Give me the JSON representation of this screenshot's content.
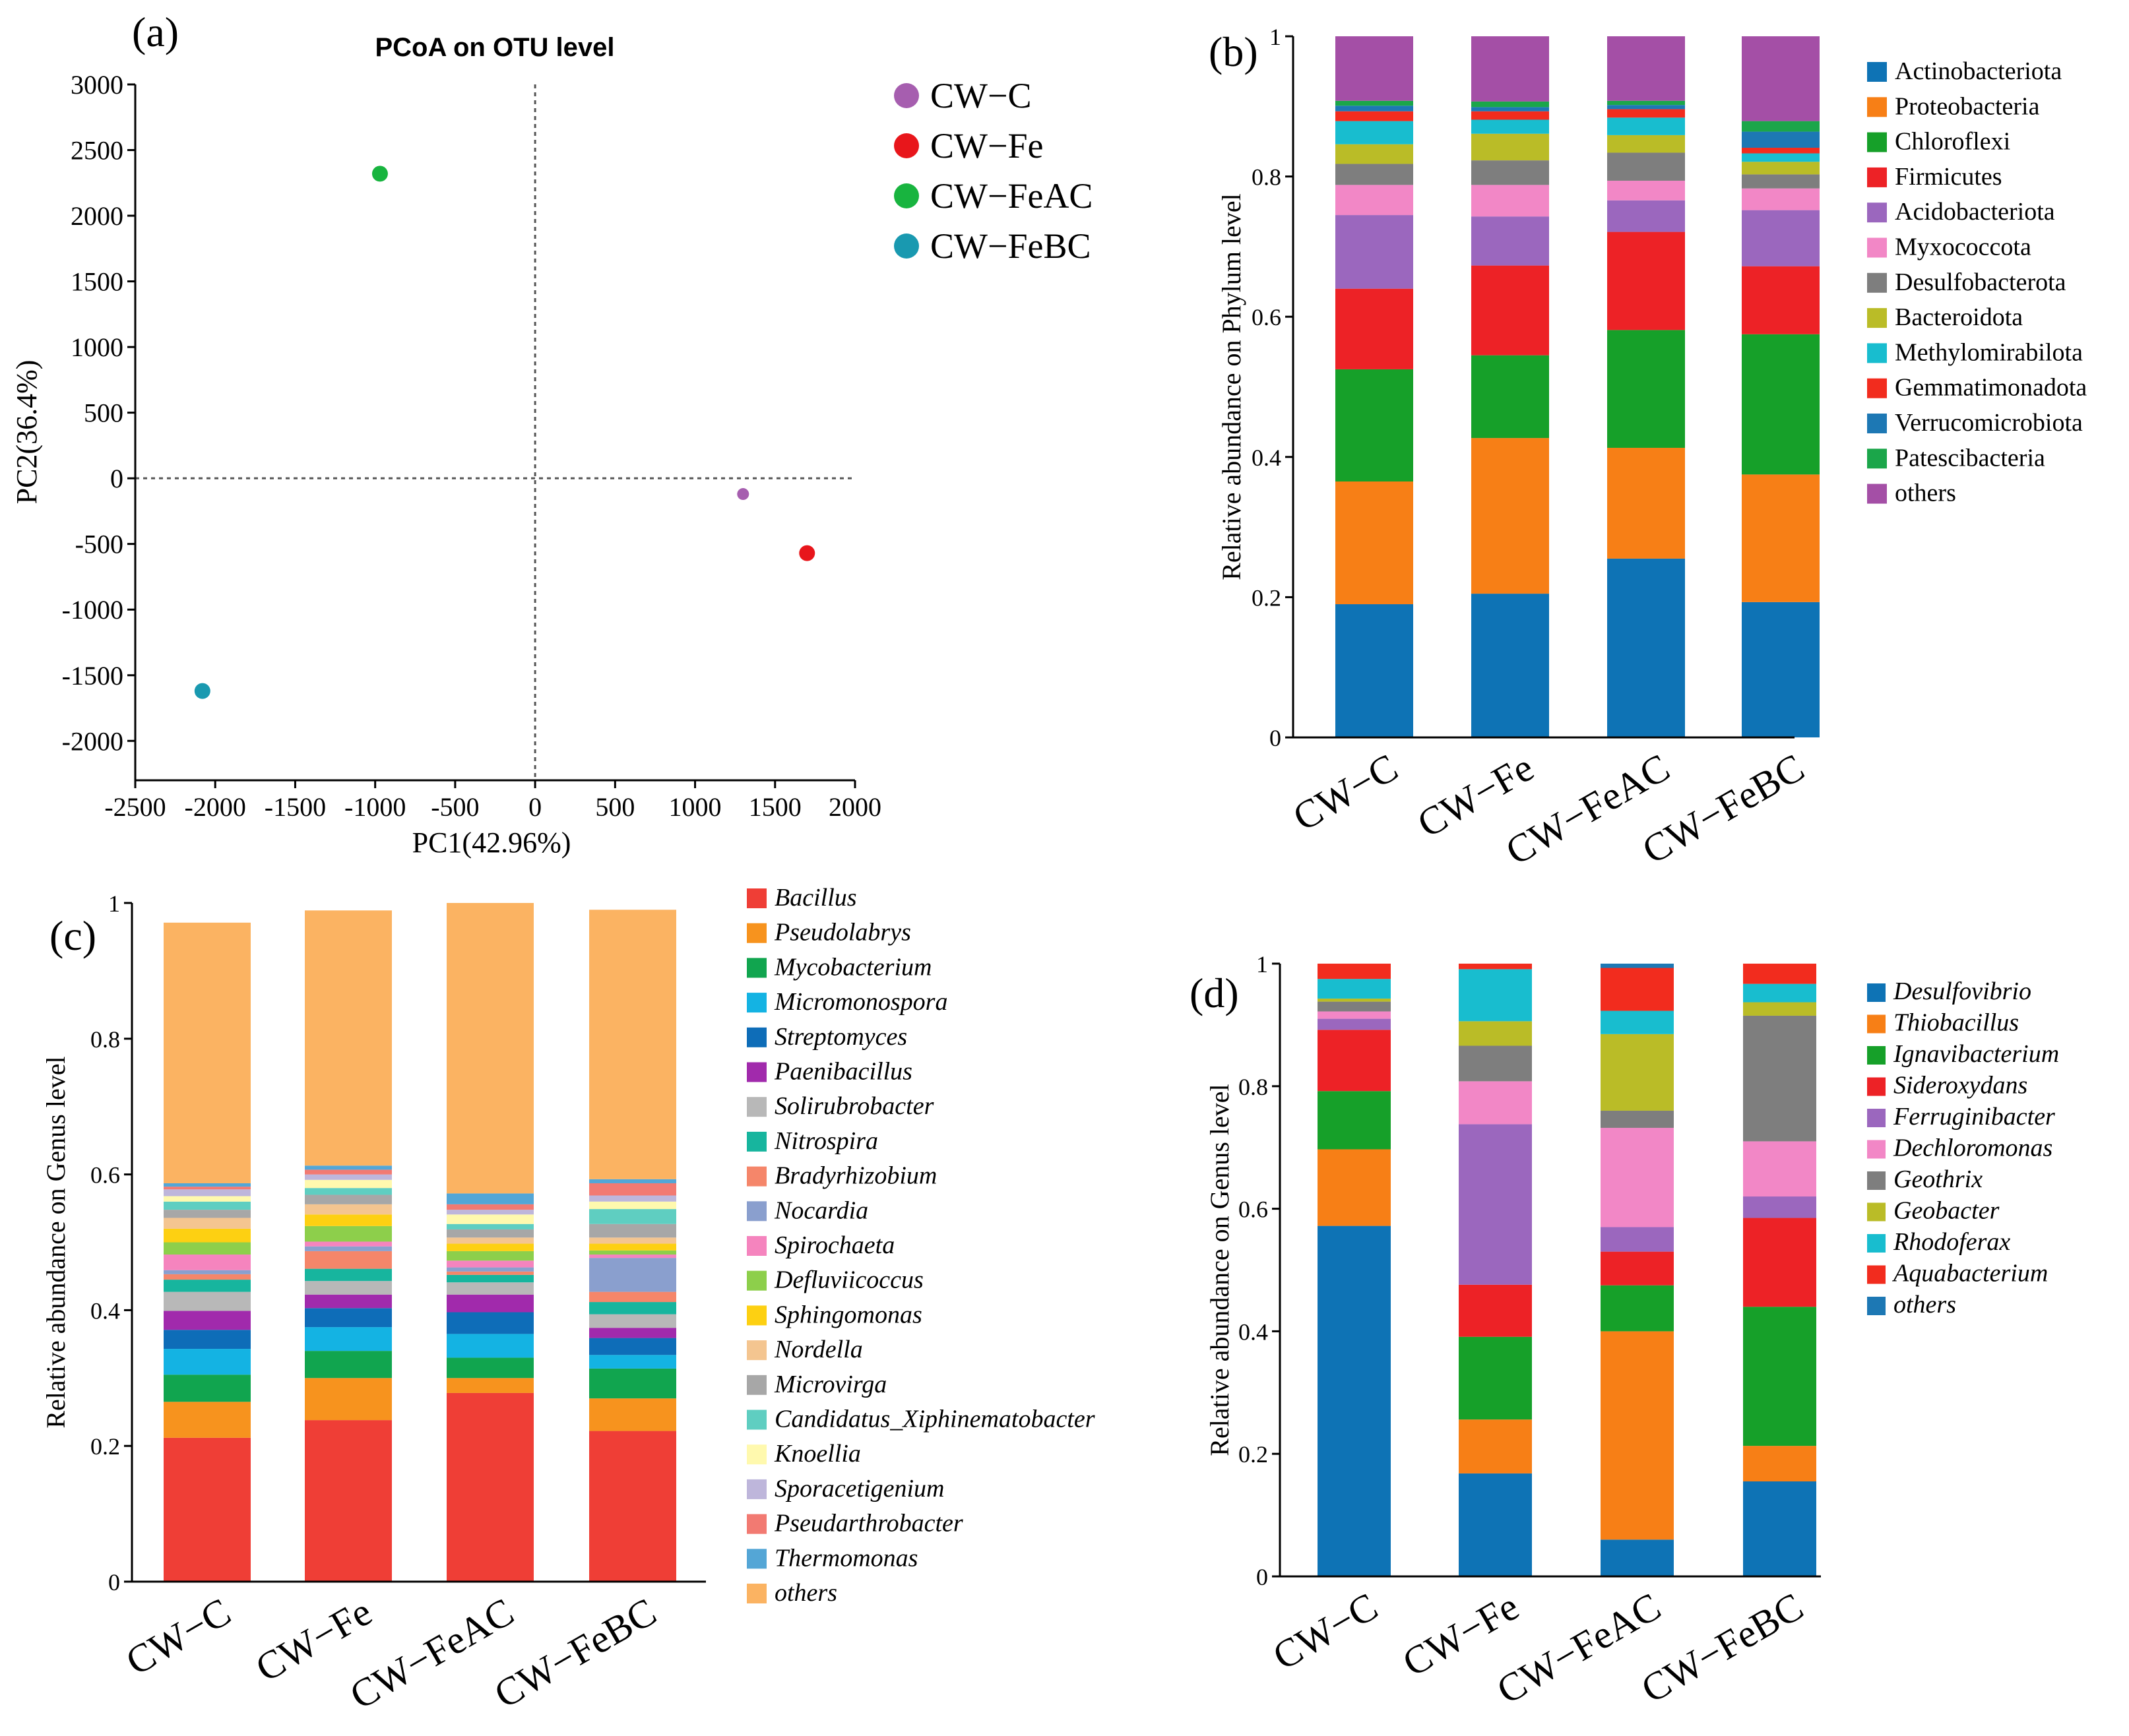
{
  "figure": {
    "panel_labels": [
      "(a)",
      "(b)",
      "(c)",
      "(d)"
    ]
  },
  "chart_data": [
    {
      "panel": "(a)",
      "type": "scatter",
      "title": "PCoA on OTU level",
      "xlabel": "PC1(42.96%)",
      "ylabel": "PC2(36.4%)",
      "xlim": [
        -2500,
        2000
      ],
      "ylim": [
        -2300,
        3000
      ],
      "xticks": [
        -2500,
        -2000,
        -1500,
        -1000,
        -500,
        0,
        500,
        1000,
        1500,
        2000
      ],
      "yticks": [
        -2000,
        -1500,
        -1000,
        -500,
        0,
        500,
        1000,
        1500,
        2000,
        2500,
        3000
      ],
      "points": [
        {
          "name": "CW−C",
          "x": 1300,
          "y": -120,
          "color": "#A65EAF"
        },
        {
          "name": "CW−Fe",
          "x": 1700,
          "y": -570,
          "color": "#E8161B"
        },
        {
          "name": "CW−FeAC",
          "x": -970,
          "y": 2320,
          "color": "#18B43F"
        },
        {
          "name": "CW−FeBC",
          "x": -2080,
          "y": -1620,
          "color": "#1999B0"
        }
      ],
      "legend": "right"
    },
    {
      "panel": "(b)",
      "type": "bar",
      "stacked": true,
      "ylabel": "Relative abundance on Phylum level",
      "ylim": [
        0,
        1
      ],
      "yticks": [
        "0",
        "0.2",
        "0.4",
        "0.6",
        "0.8",
        "1"
      ],
      "categories": [
        "CW−C",
        "CW−Fe",
        "CW−FeAC",
        "CW−FeBC"
      ],
      "series": [
        {
          "name": "Actinobacteriota",
          "color": "#0E73B5",
          "values": [
            0.19,
            0.205,
            0.255,
            0.193
          ]
        },
        {
          "name": "Proteobacteria",
          "color": "#F77F16",
          "values": [
            0.175,
            0.222,
            0.158,
            0.182
          ]
        },
        {
          "name": "Chloroflexi",
          "color": "#16A029",
          "values": [
            0.16,
            0.118,
            0.168,
            0.2
          ]
        },
        {
          "name": "Firmicutes",
          "color": "#ED2226",
          "values": [
            0.115,
            0.128,
            0.14,
            0.097
          ]
        },
        {
          "name": "Acidobacteriota",
          "color": "#9B67BE",
          "values": [
            0.105,
            0.07,
            0.045,
            0.08
          ]
        },
        {
          "name": "Myxococcota",
          "color": "#F287C6",
          "values": [
            0.043,
            0.045,
            0.028,
            0.031
          ]
        },
        {
          "name": "Desulfobacterota",
          "color": "#7E7E7E",
          "values": [
            0.03,
            0.035,
            0.04,
            0.02
          ]
        },
        {
          "name": "Bacteroidota",
          "color": "#BABC27",
          "values": [
            0.028,
            0.038,
            0.025,
            0.018
          ]
        },
        {
          "name": "Methylomirabilota",
          "color": "#18BDCF",
          "values": [
            0.033,
            0.02,
            0.025,
            0.012
          ]
        },
        {
          "name": "Gemmatimonadota",
          "color": "#F22C1E",
          "values": [
            0.014,
            0.012,
            0.012,
            0.008
          ]
        },
        {
          "name": "Verrucomicrobiota",
          "color": "#1D78B4",
          "values": [
            0.008,
            0.006,
            0.006,
            0.023
          ]
        },
        {
          "name": "Patescibacteria",
          "color": "#1BA64A",
          "values": [
            0.007,
            0.008,
            0.006,
            0.015
          ]
        },
        {
          "name": "others",
          "color": "#A44FA6",
          "values": [
            0.092,
            0.093,
            0.092,
            0.121
          ]
        }
      ]
    },
    {
      "panel": "(c)",
      "type": "bar",
      "stacked": true,
      "ylabel": "Relative abundance on Genus level",
      "ylim": [
        0,
        1
      ],
      "yticks": [
        "0",
        "0.2",
        "0.4",
        "0.6",
        "0.8",
        "1"
      ],
      "categories": [
        "CW−C",
        "CW−Fe",
        "CW−FeAC",
        "CW−FeBC"
      ],
      "series": [
        {
          "name": "Bacillus",
          "color": "#EF3E36",
          "values": [
            0.212,
            0.238,
            0.278,
            0.222
          ]
        },
        {
          "name": "Pseudolabrys",
          "color": "#F7931E",
          "values": [
            0.053,
            0.062,
            0.022,
            0.048
          ]
        },
        {
          "name": "Mycobacterium",
          "color": "#11A54F",
          "values": [
            0.04,
            0.04,
            0.03,
            0.044
          ]
        },
        {
          "name": "Micromonospora",
          "color": "#14B3E3",
          "values": [
            0.038,
            0.035,
            0.035,
            0.02
          ]
        },
        {
          "name": "Streptomyces",
          "color": "#0E6DB8",
          "values": [
            0.028,
            0.028,
            0.032,
            0.025
          ]
        },
        {
          "name": "Paenibacillus",
          "color": "#A12AAC",
          "values": [
            0.028,
            0.02,
            0.026,
            0.015
          ]
        },
        {
          "name": "Solirubrobacter",
          "color": "#B8B8B8",
          "values": [
            0.028,
            0.02,
            0.018,
            0.02
          ]
        },
        {
          "name": "Nitrospira",
          "color": "#17B59E",
          "values": [
            0.018,
            0.018,
            0.011,
            0.018
          ]
        },
        {
          "name": "Bradyrhizobium",
          "color": "#F5866A",
          "values": [
            0.008,
            0.026,
            0.005,
            0.015
          ]
        },
        {
          "name": "Nocardia",
          "color": "#8A9FCE",
          "values": [
            0.006,
            0.007,
            0.006,
            0.05
          ]
        },
        {
          "name": "Spirochaeta",
          "color": "#F584BE",
          "values": [
            0.023,
            0.007,
            0.01,
            0.005
          ]
        },
        {
          "name": "Defluviicoccus",
          "color": "#8DCF4B",
          "values": [
            0.018,
            0.023,
            0.014,
            0.006
          ]
        },
        {
          "name": "Sphingomonas",
          "color": "#FDD012",
          "values": [
            0.02,
            0.017,
            0.011,
            0.01
          ]
        },
        {
          "name": "Nordella",
          "color": "#F4C590",
          "values": [
            0.016,
            0.015,
            0.009,
            0.009
          ]
        },
        {
          "name": "Microvirga",
          "color": "#A7A7A7",
          "values": [
            0.012,
            0.014,
            0.012,
            0.02
          ]
        },
        {
          "name": "Candidatus_Xiphinematobacter",
          "color": "#5FCEC1",
          "values": [
            0.012,
            0.01,
            0.008,
            0.022
          ]
        },
        {
          "name": "Knoellia",
          "color": "#FFF9AE",
          "values": [
            0.008,
            0.012,
            0.014,
            0.011
          ]
        },
        {
          "name": "Sporacetigenium",
          "color": "#BEB6DB",
          "values": [
            0.01,
            0.008,
            0.007,
            0.009
          ]
        },
        {
          "name": "Pseudarthrobacter",
          "color": "#F27A72",
          "values": [
            0.004,
            0.007,
            0.008,
            0.018
          ]
        },
        {
          "name": "Thermomonas",
          "color": "#54A6D6",
          "values": [
            0.005,
            0.006,
            0.016,
            0.006
          ]
        },
        {
          "name": "others",
          "color": "#FBB362",
          "values": [
            0.384,
            0.376,
            0.428,
            0.397
          ]
        }
      ]
    },
    {
      "panel": "(d)",
      "type": "bar",
      "stacked": true,
      "ylabel": "Relative abundance on Genus level",
      "ylim": [
        0,
        1
      ],
      "yticks": [
        "0",
        "0.2",
        "0.4",
        "0.6",
        "0.8",
        "1"
      ],
      "categories": [
        "CW−C",
        "CW−Fe",
        "CW−FeAC",
        "CW−FeBC"
      ],
      "series": [
        {
          "name": "Desulfovibrio",
          "color": "#0E73B5",
          "values": [
            0.572,
            0.168,
            0.06,
            0.155
          ]
        },
        {
          "name": "Thiobacillus",
          "color": "#F77F16",
          "values": [
            0.125,
            0.088,
            0.34,
            0.058
          ]
        },
        {
          "name": "Ignavibacterium",
          "color": "#16A029",
          "values": [
            0.095,
            0.135,
            0.075,
            0.227
          ]
        },
        {
          "name": "Sideroxydans",
          "color": "#ED2226",
          "values": [
            0.1,
            0.085,
            0.055,
            0.145
          ]
        },
        {
          "name": "Ferruginibacter",
          "color": "#9B67BE",
          "values": [
            0.018,
            0.262,
            0.04,
            0.035
          ]
        },
        {
          "name": "Dechloromonas",
          "color": "#F287C6",
          "values": [
            0.012,
            0.07,
            0.162,
            0.09
          ]
        },
        {
          "name": "Geothrix",
          "color": "#7E7E7E",
          "values": [
            0.016,
            0.058,
            0.028,
            0.205
          ]
        },
        {
          "name": "Geobacter",
          "color": "#BABC27",
          "values": [
            0.005,
            0.04,
            0.125,
            0.022
          ]
        },
        {
          "name": "Rhodoferax",
          "color": "#18BDCF",
          "values": [
            0.032,
            0.085,
            0.038,
            0.03
          ]
        },
        {
          "name": "Aquabacterium",
          "color": "#F22C1E",
          "values": [
            0.025,
            0.009,
            0.07,
            0.033
          ]
        },
        {
          "name": "others",
          "color": "#1D78B4",
          "values": [
            0.0,
            0.0,
            0.007,
            0.0
          ]
        }
      ]
    }
  ]
}
